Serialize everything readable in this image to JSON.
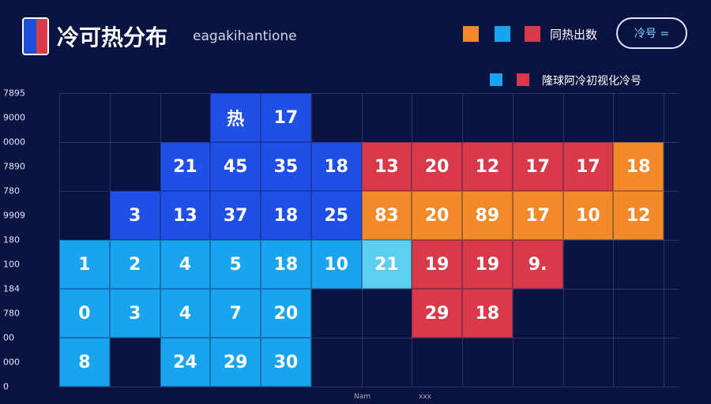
{
  "header": {
    "title": "冷可热分布",
    "subtitle": "eagakihantione",
    "legend_label": "同热出数",
    "button": "冷号 ="
  },
  "legend2": {
    "label": "隆球阿冷初视化冷号"
  },
  "y_labels": [
    "7895",
    "9000",
    "0000",
    "7890",
    "780",
    "9909",
    "180",
    "100",
    "184",
    "780",
    "00",
    "000",
    "0"
  ],
  "x_labels": [
    "Nam",
    "xxx"
  ],
  "grid": {
    "rows": [
      [
        null,
        null,
        null,
        {
          "text": "热",
          "color": "#1f4fe6"
        },
        {
          "text": 17,
          "color": "#1f4fe6"
        },
        null,
        null,
        null,
        null,
        null,
        null,
        null
      ],
      [
        null,
        null,
        {
          "text": 21,
          "color": "#1f4fe6"
        },
        {
          "text": 45,
          "color": "#1f4fe6"
        },
        {
          "text": 35,
          "color": "#1f4fe6"
        },
        {
          "text": 18,
          "color": "#1f4fe6"
        },
        {
          "text": 13,
          "color": "#d93a4a"
        },
        {
          "text": 20,
          "color": "#d93a4a"
        },
        {
          "text": 12,
          "color": "#d93a4a"
        },
        {
          "text": 17,
          "color": "#d93a4a"
        },
        {
          "text": 17,
          "color": "#d93a4a"
        },
        {
          "text": 18,
          "color": "#f28a2a"
        }
      ],
      [
        null,
        {
          "text": 3,
          "color": "#1f4fe6"
        },
        {
          "text": 13,
          "color": "#1f4fe6"
        },
        {
          "text": 37,
          "color": "#1f4fe6"
        },
        {
          "text": 18,
          "color": "#1f4fe6"
        },
        {
          "text": 25,
          "color": "#1f4fe6"
        },
        {
          "text": 83,
          "color": "#f28a2a"
        },
        {
          "text": 20,
          "color": "#f28a2a"
        },
        {
          "text": 89,
          "color": "#f28a2a"
        },
        {
          "text": 17,
          "color": "#f28a2a"
        },
        {
          "text": 10,
          "color": "#f28a2a"
        },
        {
          "text": 12,
          "color": "#f28a2a"
        }
      ],
      [
        {
          "text": 1,
          "color": "#18a4ee"
        },
        {
          "text": 2,
          "color": "#18a4ee"
        },
        {
          "text": 4,
          "color": "#18a4ee"
        },
        {
          "text": 5,
          "color": "#18a4ee"
        },
        {
          "text": 18,
          "color": "#18a4ee"
        },
        {
          "text": 10,
          "color": "#18a4ee"
        },
        {
          "text": 21,
          "color": "#5ccfee"
        },
        {
          "text": 19,
          "color": "#d93a4a"
        },
        {
          "text": 19,
          "color": "#d93a4a"
        },
        {
          "text": "9.",
          "color": "#d93a4a"
        },
        null,
        null
      ],
      [
        {
          "text": 0,
          "color": "#18a4ee"
        },
        {
          "text": 3,
          "color": "#18a4ee"
        },
        {
          "text": 4,
          "color": "#18a4ee"
        },
        {
          "text": 7,
          "color": "#18a4ee"
        },
        {
          "text": 20,
          "color": "#18a4ee"
        },
        null,
        null,
        {
          "text": 29,
          "color": "#d93a4a"
        },
        {
          "text": 18,
          "color": "#d93a4a"
        },
        null,
        null,
        null
      ],
      [
        {
          "text": 8,
          "color": "#18a4ee"
        },
        null,
        {
          "text": 24,
          "color": "#18a4ee"
        },
        {
          "text": 29,
          "color": "#18a4ee"
        },
        {
          "text": 30,
          "color": "#18a4ee"
        },
        null,
        null,
        null,
        null,
        null,
        null,
        null
      ]
    ]
  }
}
